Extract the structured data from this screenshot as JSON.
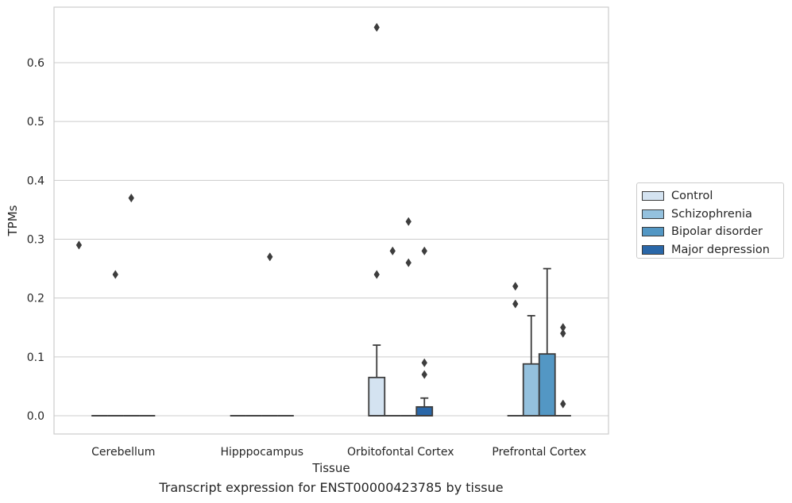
{
  "chart_data": {
    "type": "box",
    "title": "",
    "xlabel": "Tissue",
    "ylabel": "TPMs",
    "caption": "Transcript expression for ENST00000423785 by tissue",
    "ylim": [
      -0.033,
      0.7
    ],
    "yticks": [
      "0.0",
      "0.1",
      "0.2",
      "0.3",
      "0.4",
      "0.5",
      "0.6"
    ],
    "ytick_values": [
      0.0,
      0.1,
      0.2,
      0.3,
      0.4,
      0.5,
      0.6
    ],
    "grid": "horizontal",
    "legend_position": "right",
    "categories": [
      "Cerebellum",
      "Hipppocampus",
      "Orbitofontal Cortex",
      "Prefrontal Cortex"
    ],
    "series": [
      {
        "name": "Control",
        "color": "#d4e3f1",
        "boxes": [
          {
            "q1": 0,
            "median": 0,
            "q3": 0,
            "whislo": 0,
            "whishi": 0,
            "outliers": []
          },
          {
            "q1": 0,
            "median": 0,
            "q3": 0,
            "whislo": 0,
            "whishi": 0,
            "outliers": []
          },
          {
            "q1": 0,
            "median": 0,
            "q3": 0.065,
            "whislo": 0,
            "whishi": 0.12,
            "outliers": [
              0.24,
              0.66
            ]
          },
          {
            "q1": 0,
            "median": 0,
            "q3": 0,
            "whislo": 0,
            "whishi": 0,
            "outliers": [
              0.19,
              0.22
            ]
          }
        ]
      },
      {
        "name": "Schizophrenia",
        "color": "#94c1de",
        "boxes": [
          {
            "q1": 0,
            "median": 0,
            "q3": 0,
            "whislo": 0,
            "whishi": 0,
            "outliers": [
              0.24
            ]
          },
          {
            "q1": 0,
            "median": 0,
            "q3": 0,
            "whislo": 0,
            "whishi": 0,
            "outliers": []
          },
          {
            "q1": 0,
            "median": 0,
            "q3": 0,
            "whislo": 0,
            "whishi": 0,
            "outliers": [
              0.28
            ]
          },
          {
            "q1": 0,
            "median": 0,
            "q3": 0.088,
            "whislo": 0,
            "whishi": 0.17,
            "outliers": []
          }
        ]
      },
      {
        "name": "Bipolar disorder",
        "color": "#5397c4",
        "boxes": [
          {
            "q1": 0,
            "median": 0,
            "q3": 0,
            "whislo": 0,
            "whishi": 0,
            "outliers": [
              0.37
            ]
          },
          {
            "q1": 0,
            "median": 0,
            "q3": 0,
            "whislo": 0,
            "whishi": 0,
            "outliers": [
              0.27
            ]
          },
          {
            "q1": 0,
            "median": 0,
            "q3": 0,
            "whislo": 0,
            "whishi": 0,
            "outliers": [
              0.26,
              0.33
            ]
          },
          {
            "q1": 0,
            "median": 0,
            "q3": 0.105,
            "whislo": 0,
            "whishi": 0.25,
            "outliers": []
          }
        ]
      },
      {
        "name": "Major depression",
        "color": "#2a67a8",
        "boxes": [
          {
            "q1": 0,
            "median": 0,
            "q3": 0,
            "whislo": 0,
            "whishi": 0,
            "outliers": []
          },
          {
            "q1": 0,
            "median": 0,
            "q3": 0,
            "whislo": 0,
            "whishi": 0,
            "outliers": []
          },
          {
            "q1": 0,
            "median": 0,
            "q3": 0.015,
            "whislo": 0,
            "whishi": 0.03,
            "outliers": [
              0.07,
              0.09,
              0.28
            ]
          },
          {
            "q1": 0,
            "median": 0,
            "q3": 0,
            "whislo": 0,
            "whishi": 0,
            "outliers": [
              0.02,
              0.14,
              0.15
            ]
          }
        ]
      }
    ],
    "extra_outliers": [
      {
        "category": 0,
        "value": 0.29,
        "position": -0.32
      }
    ]
  }
}
